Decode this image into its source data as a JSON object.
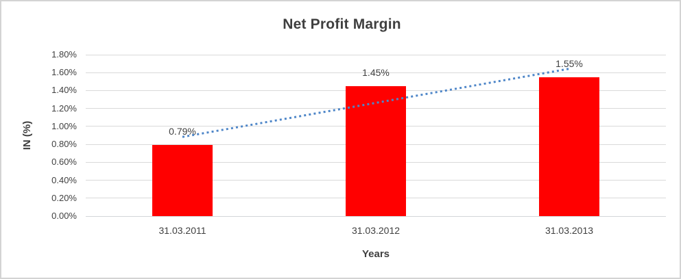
{
  "chart_data": {
    "type": "bar",
    "title": "Net Profit Margin",
    "xlabel": "Years",
    "ylabel": "IN (%)",
    "categories": [
      "31.03.2011",
      "31.03.2012",
      "31.03.2013"
    ],
    "values": [
      0.79,
      1.45,
      1.55
    ],
    "data_labels": [
      "0.79%",
      "1.45%",
      "1.55%"
    ],
    "ylim": [
      0,
      1.8
    ],
    "yticks": [
      {
        "value": 0.0,
        "label": "0.00%"
      },
      {
        "value": 0.2,
        "label": "0.20%"
      },
      {
        "value": 0.4,
        "label": "0.40%"
      },
      {
        "value": 0.6,
        "label": "0.60%"
      },
      {
        "value": 0.8,
        "label": "0.80%"
      },
      {
        "value": 1.0,
        "label": "1.00%"
      },
      {
        "value": 1.2,
        "label": "1.20%"
      },
      {
        "value": 1.4,
        "label": "1.40%"
      },
      {
        "value": 1.6,
        "label": "1.60%"
      },
      {
        "value": 1.8,
        "label": "1.80%"
      }
    ],
    "grid": true,
    "legend": "none",
    "trendline": {
      "type": "linear",
      "style": "dotted",
      "start_value": 0.883,
      "end_value": 1.643
    }
  },
  "colors": {
    "bar": "#ff0000",
    "trendline": "#4e86c8",
    "gridline": "#d9d9d9",
    "axis_line": "#d2d5d8",
    "text": "#404040",
    "title_text": "#3f3f3f",
    "border": "#d3d3d3",
    "background": "#ffffff"
  }
}
